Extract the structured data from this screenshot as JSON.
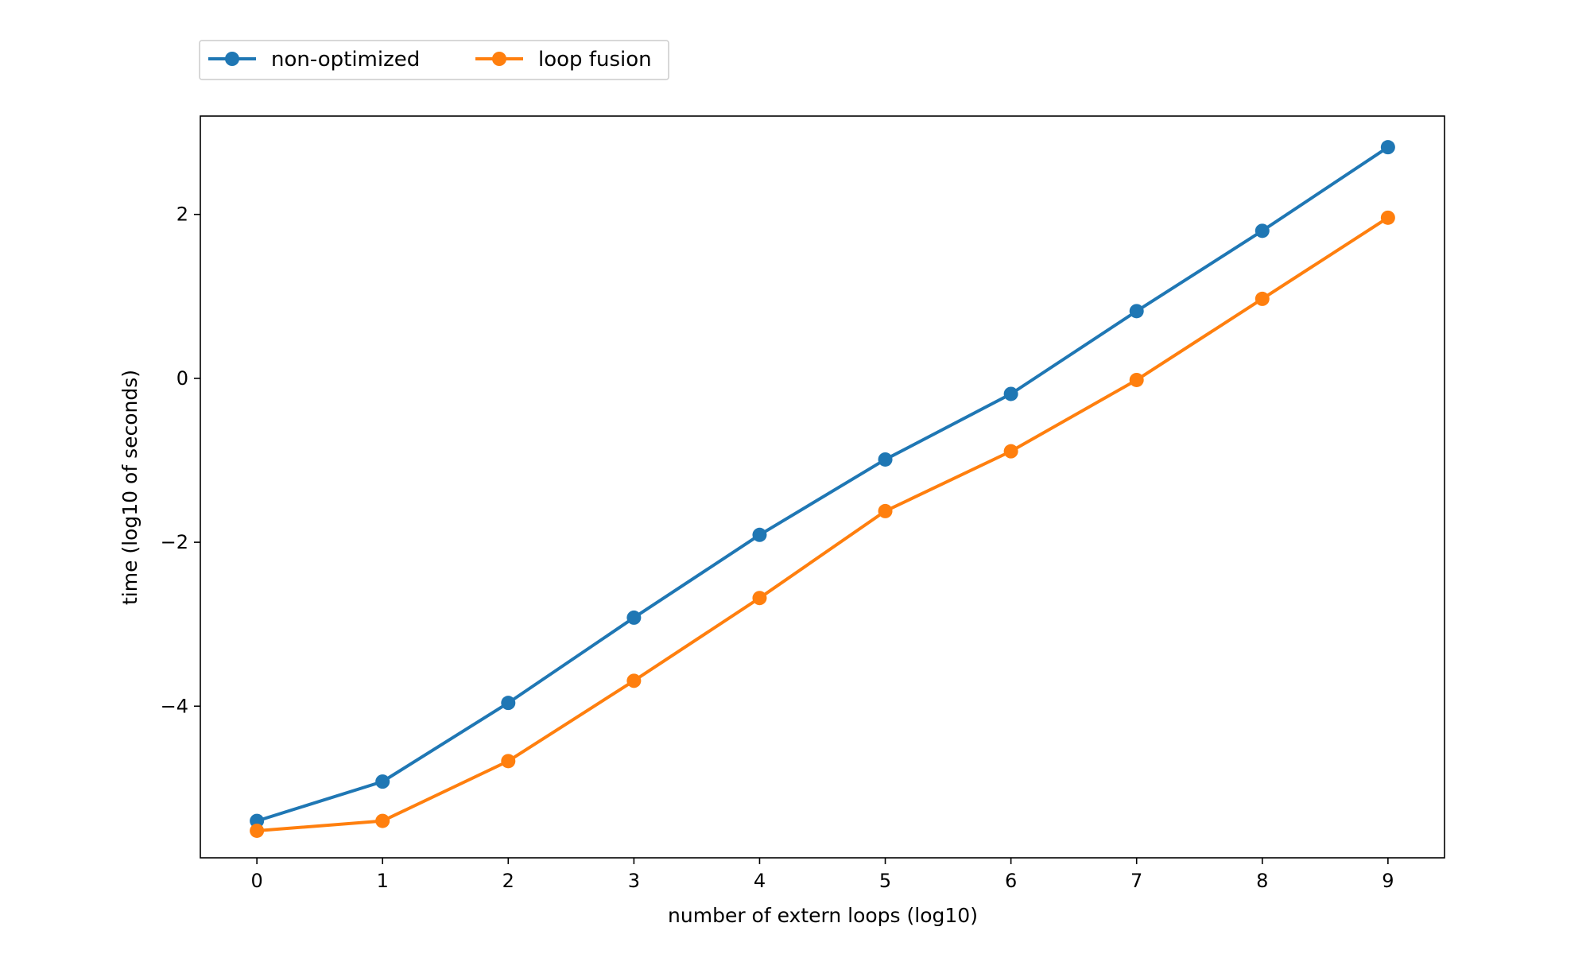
{
  "chart_data": {
    "type": "line",
    "title": "",
    "xlabel": "number of extern loops (log10)",
    "ylabel": "time (log10 of seconds)",
    "x": [
      0,
      1,
      2,
      3,
      4,
      5,
      6,
      7,
      8,
      9
    ],
    "xlim": [
      -0.45,
      9.45
    ],
    "ylim": [
      -5.85,
      3.2
    ],
    "xticks": [
      0,
      1,
      2,
      3,
      4,
      5,
      6,
      7,
      8,
      9
    ],
    "yticks": [
      2,
      0,
      -2,
      -4
    ],
    "ytick_labels": [
      "2",
      "0",
      "−2",
      "−4"
    ],
    "grid": false,
    "legend_position": "top-left, above plot",
    "series": [
      {
        "name": "non-optimized",
        "color": "#1f77b4",
        "values": [
          -5.4,
          -4.92,
          -3.96,
          -2.92,
          -1.91,
          -0.99,
          -0.19,
          0.82,
          1.8,
          2.82
        ]
      },
      {
        "name": "loop fusion",
        "color": "#ff7f0e",
        "values": [
          -5.52,
          -5.4,
          -4.67,
          -3.69,
          -2.68,
          -1.62,
          -0.89,
          -0.02,
          0.97,
          1.96
        ]
      }
    ]
  }
}
